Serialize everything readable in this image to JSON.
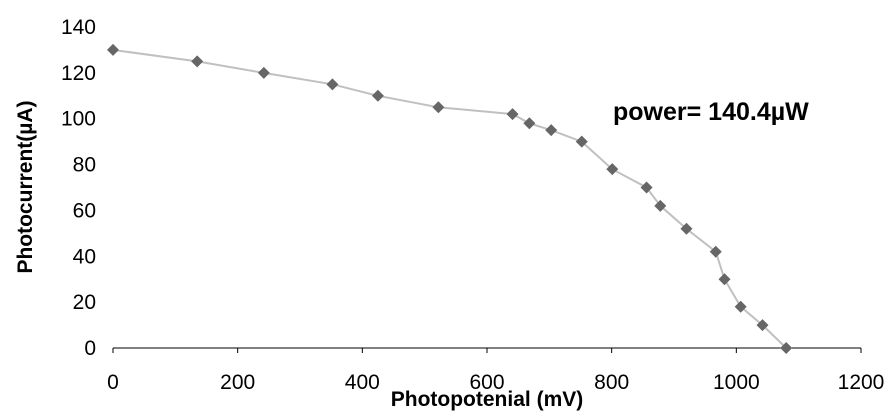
{
  "chart_data": {
    "type": "scatter",
    "title": "",
    "xlabel": "Photopotenial (mV)",
    "ylabel": "Photocurrent(µA)",
    "xlim": [
      0,
      1200
    ],
    "ylim": [
      0,
      140
    ],
    "xticks": [
      0,
      200,
      400,
      600,
      800,
      1000,
      1200
    ],
    "yticks": [
      0,
      20,
      40,
      60,
      80,
      100,
      120,
      140
    ],
    "grid": false,
    "annotation": "power= 140.4µW",
    "series": [
      {
        "x": [
          0,
          135,
          242,
          352,
          425,
          522,
          641,
          668,
          703,
          752,
          801,
          856,
          878,
          920,
          967,
          981,
          1007,
          1042,
          1080
        ],
        "y": [
          130,
          125,
          120,
          115,
          110,
          105,
          102,
          98,
          95,
          90,
          78,
          70,
          62,
          52,
          42,
          30,
          18,
          10,
          0
        ],
        "line_color": "#c0c0c0",
        "marker": "diamond",
        "marker_color": "#666666"
      }
    ]
  }
}
